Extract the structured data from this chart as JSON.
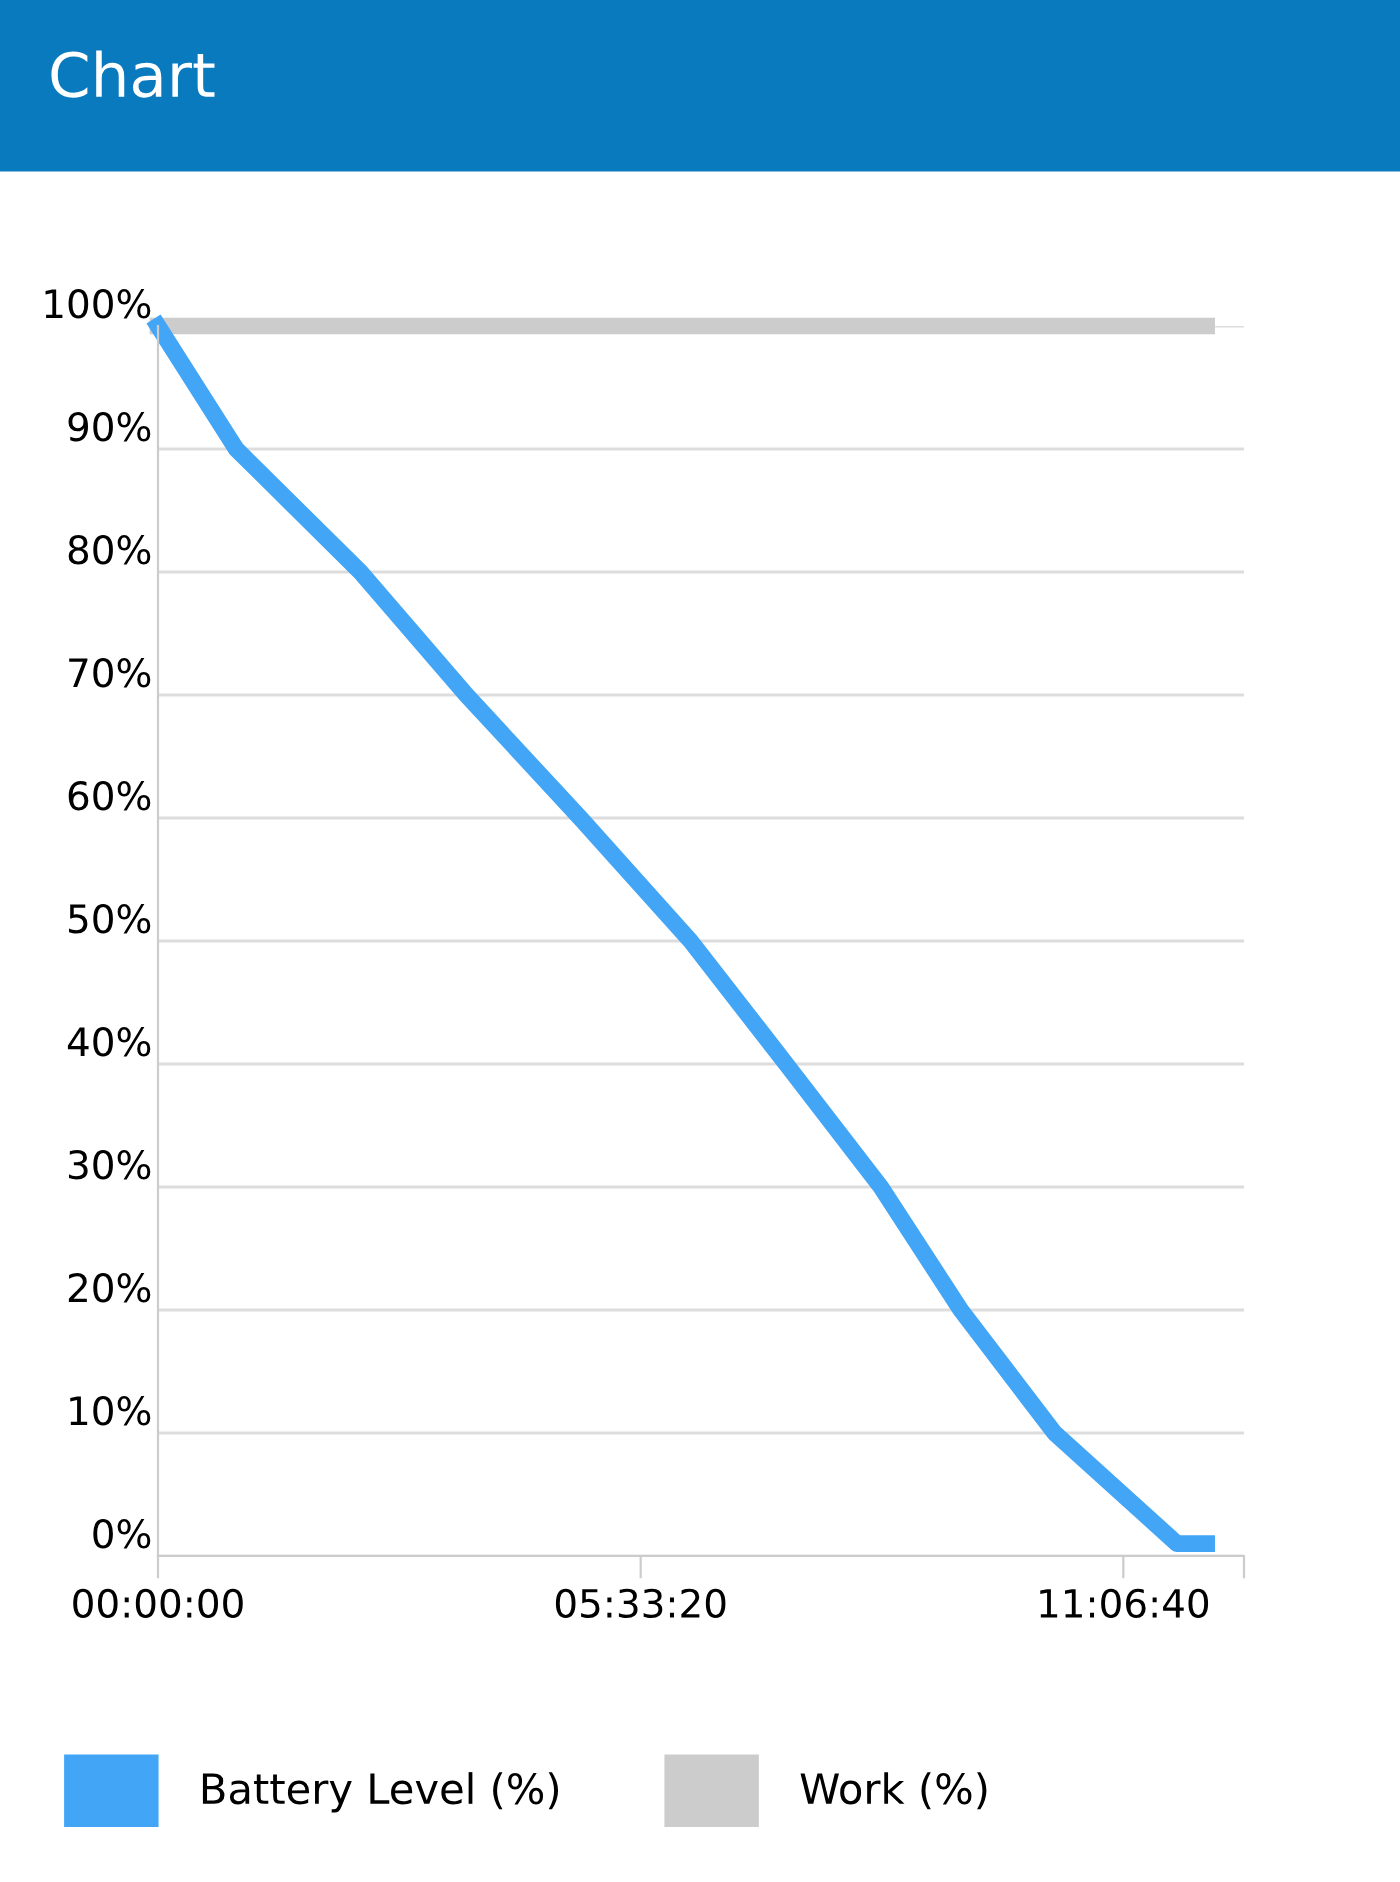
{
  "chart_data": {
    "type": "line",
    "title": "Chart",
    "xlim": [
      0,
      12.5
    ],
    "xticks": [
      {
        "value": 0,
        "label": "00:00:00"
      },
      {
        "value": 5.5556,
        "label": "05:33:20"
      },
      {
        "value": 11.1111,
        "label": "11:06:40"
      },
      {
        "value": 12.5,
        "label": null
      }
    ],
    "ylim": [
      0,
      100
    ],
    "yticks": [
      {
        "value": 0,
        "label": "0%"
      },
      {
        "value": 10,
        "label": "10%"
      },
      {
        "value": 20,
        "label": "20%"
      },
      {
        "value": 30,
        "label": "30%"
      },
      {
        "value": 40,
        "label": "40%"
      },
      {
        "value": 50,
        "label": "50%"
      },
      {
        "value": 60,
        "label": "60%"
      },
      {
        "value": 70,
        "label": "70%"
      },
      {
        "value": 80,
        "label": "80%"
      },
      {
        "value": 90,
        "label": "90%"
      },
      {
        "value": 100,
        "label": "100%"
      }
    ],
    "grid": "y",
    "legend": "bottom",
    "marker": "none",
    "line_style": "solid",
    "series": [
      {
        "name": "Battery Level (%)",
        "color": "#42a5f5",
        "x": [
          0,
          0.9,
          2.33,
          3.55,
          4.86,
          6.13,
          7.23,
          8.32,
          9.24,
          10.32,
          11.73,
          12.07
        ],
        "values": [
          100,
          90,
          80,
          70,
          60,
          50,
          40,
          30,
          20,
          10,
          1,
          1
        ]
      },
      {
        "name": "Work (%)",
        "color": "#cccccc",
        "x": [
          0,
          12.07
        ],
        "values": [
          100,
          100
        ]
      }
    ]
  }
}
